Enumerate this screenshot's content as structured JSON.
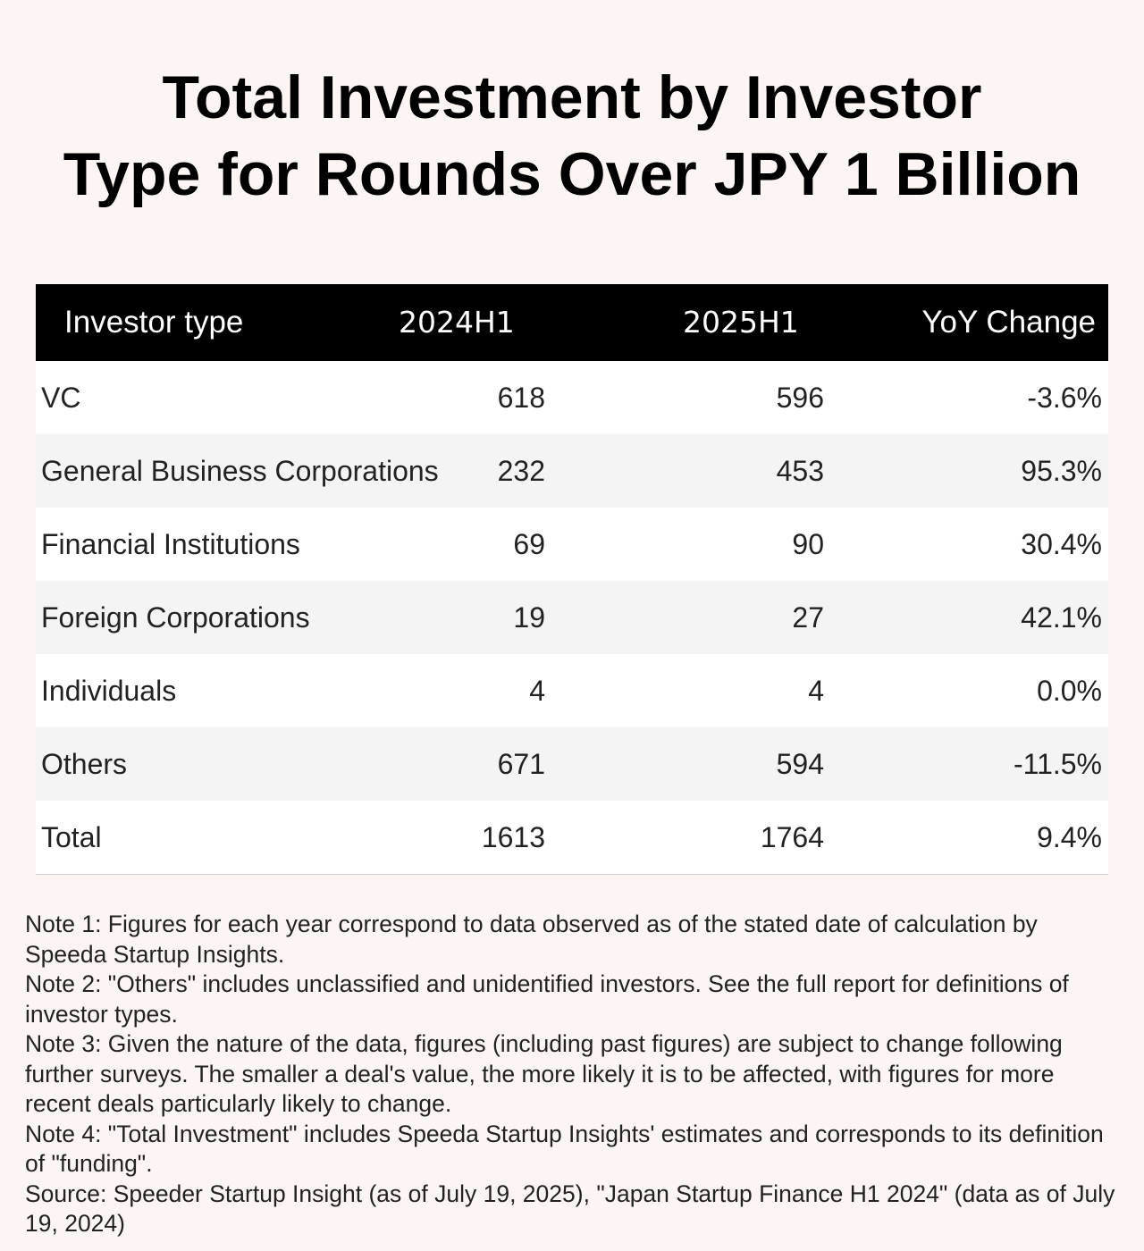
{
  "title_lines": [
    "Total Investment by Investor",
    "Type for Rounds Over JPY 1 Billion"
  ],
  "chart_data": {
    "type": "table",
    "title": "Total Investment by Investor Type for Rounds Over JPY 1 Billion",
    "columns": [
      "Investor type",
      "2024H1",
      "2025H1",
      "YoY Change"
    ],
    "rows": [
      {
        "type": "VC",
        "y2024": "618",
        "y2025": "596",
        "yoy": "-3.6%"
      },
      {
        "type": "General Business Corporations",
        "y2024": "232",
        "y2025": "453",
        "yoy": "95.3%"
      },
      {
        "type": "Financial Institutions",
        "y2024": "69",
        "y2025": "90",
        "yoy": "30.4%"
      },
      {
        "type": "Foreign Corporations",
        "y2024": "19",
        "y2025": "27",
        "yoy": "42.1%"
      },
      {
        "type": "Individuals",
        "y2024": "4",
        "y2025": "4",
        "yoy": "0.0%"
      },
      {
        "type": "Others",
        "y2024": "671",
        "y2025": "594",
        "yoy": "-11.5%"
      },
      {
        "type": "Total",
        "y2024": "1613",
        "y2025": "1764",
        "yoy": "9.4%"
      }
    ]
  },
  "notes": [
    "Note 1: Figures for each year correspond to data observed as of the stated date of calculation by Speeda Startup Insights.",
    "Note 2: \"Others\" includes unclassified and unidentified investors. See the full report for definitions of investor types.",
    "Note 3: Given the nature of the data, figures (including past figures) are subject to change following further surveys. The smaller a deal's value, the more likely it is to be affected, with figures for more recent deals particularly likely to change.",
    "Note 4: \"Total Investment\" includes Speeda Startup Insights' estimates and corresponds to its definition of \"funding\".",
    "Source: Speeder Startup Insight (as of July 19, 2025), \"Japan Startup Finance H1 2024\" (data as of July 19, 2024)"
  ],
  "colors": {
    "background": "#fdf5f3",
    "header_bg": "#000000",
    "header_text": "#ffffff",
    "alt_row": "#f4f4f4"
  }
}
